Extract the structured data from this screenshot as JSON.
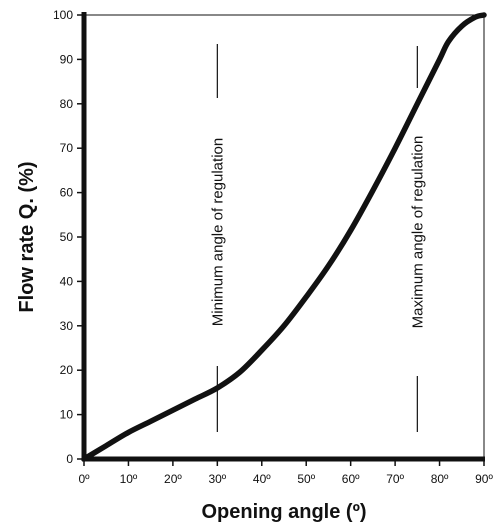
{
  "chart_data": {
    "type": "line",
    "xlabel": "Opening angle (º)",
    "ylabel": "Flow rate Q. (%)",
    "xlim": [
      0,
      90
    ],
    "ylim": [
      0,
      100
    ],
    "x_ticks": [
      "0º",
      "10º",
      "20º",
      "30º",
      "40º",
      "50º",
      "60º",
      "70º",
      "80º",
      "90º"
    ],
    "y_ticks": [
      "0",
      "10",
      "20",
      "30",
      "40",
      "50",
      "60",
      "70",
      "80",
      "90",
      "100"
    ],
    "grid": false,
    "series": [
      {
        "x": [
          0,
          5,
          10,
          15,
          20,
          25,
          30,
          35,
          40,
          45,
          50,
          55,
          60,
          65,
          70,
          75,
          80,
          82,
          85,
          88,
          90
        ],
        "y": [
          0,
          3,
          6,
          8.5,
          11,
          13.5,
          16,
          19.5,
          24.5,
          30,
          36.5,
          43.5,
          51.5,
          60.5,
          70,
          80,
          90,
          94,
          97.5,
          99.5,
          100
        ]
      }
    ],
    "annotations": [
      {
        "text": "Minimum angle of regulation",
        "x": 30
      },
      {
        "text": "Maximum angle of regulation",
        "x": 75
      }
    ]
  }
}
